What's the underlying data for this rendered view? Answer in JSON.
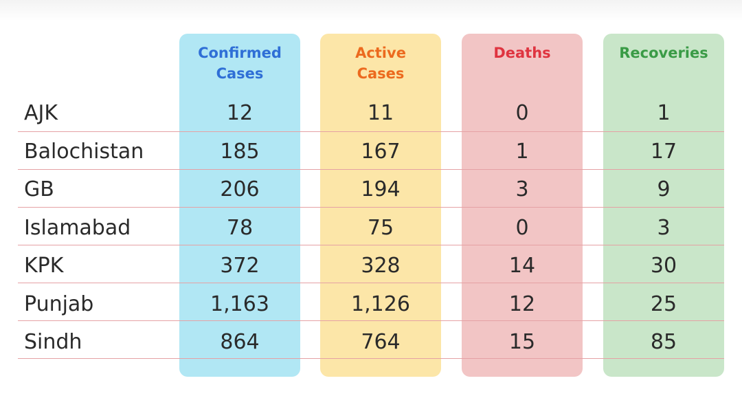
{
  "chart_data": {
    "type": "table",
    "columns": [
      {
        "key": "confirmed",
        "label": "Confirmed\nCases",
        "label_color": "#2f6fd6",
        "bg_color": "#b1e7f4"
      },
      {
        "key": "active",
        "label": "Active\nCases",
        "label_color": "#ec6a1e",
        "bg_color": "#fce6a8"
      },
      {
        "key": "deaths",
        "label": "Deaths",
        "label_color": "#df3440",
        "bg_color": "#f2c5c5"
      },
      {
        "key": "recoveries",
        "label": "Recoveries",
        "label_color": "#3a9b46",
        "bg_color": "#c9e6c9"
      }
    ],
    "rows": [
      {
        "region": "AJK",
        "confirmed": "12",
        "active": "11",
        "deaths": "0",
        "recoveries": "1"
      },
      {
        "region": "Balochistan",
        "confirmed": "185",
        "active": "167",
        "deaths": "1",
        "recoveries": "17"
      },
      {
        "region": "GB",
        "confirmed": "206",
        "active": "194",
        "deaths": "3",
        "recoveries": "9"
      },
      {
        "region": "Islamabad",
        "confirmed": "78",
        "active": "75",
        "deaths": "0",
        "recoveries": "3"
      },
      {
        "region": "KPK",
        "confirmed": "372",
        "active": "328",
        "deaths": "14",
        "recoveries": "30"
      },
      {
        "region": "Punjab",
        "confirmed": "1,163",
        "active": "1,126",
        "deaths": "12",
        "recoveries": "25"
      },
      {
        "region": "Sindh",
        "confirmed": "864",
        "active": "764",
        "deaths": "15",
        "recoveries": "85"
      }
    ],
    "row_line_color": "#e5a1a4",
    "text_color": "#2a2a2a"
  }
}
